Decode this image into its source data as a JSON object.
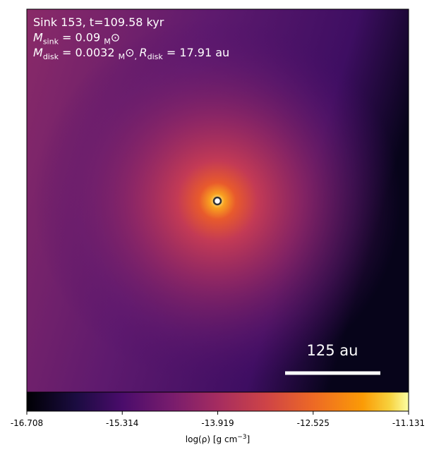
{
  "chart_data": {
    "type": "heatmap",
    "annotations": [
      [
        "Sink 153, t=109.58 kyr"
      ],
      [
        "M",
        "sink",
        " = 0.09 ",
        "M",
        "⊙"
      ],
      [
        "M",
        "disk",
        " = 0.0032 ",
        "M",
        "⊙",
        ", ",
        "R",
        "disk",
        " = 17.91 au"
      ]
    ],
    "scale_bar_label": "125 au",
    "colorbar": {
      "label": [
        "log(ρ) [g cm",
        "−3",
        "]"
      ],
      "lim": [
        -16.708,
        -11.131
      ],
      "ticks": [
        -16.708,
        -15.314,
        -13.919,
        -12.525,
        -11.131
      ]
    }
  }
}
